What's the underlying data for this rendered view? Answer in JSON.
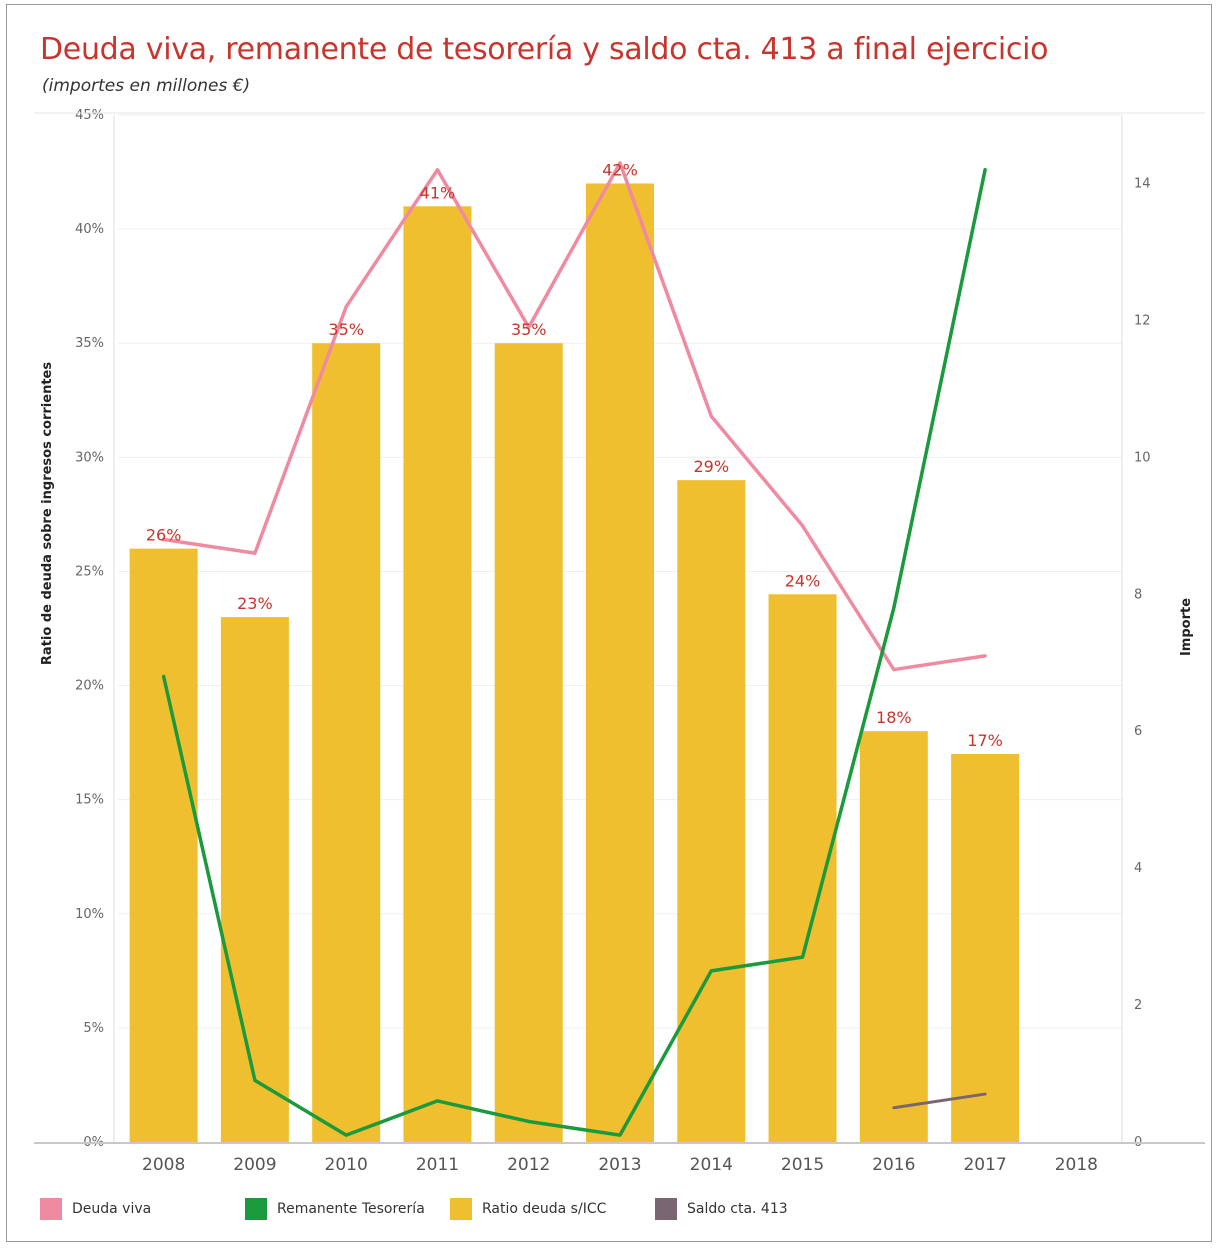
{
  "header": {
    "title": "Deuda viva, remanente de tesorería y saldo cta. 413  a final ejercicio",
    "subtitle": "(importes en millones €)"
  },
  "colors": {
    "bars": "#f0bf30",
    "deuda": "#f08aa0",
    "remanente": "#1a9a3c",
    "saldo": "#7a6670",
    "labels": "#c8352d"
  },
  "legend": [
    {
      "label": "Deuda viva",
      "color": "#f08aa0"
    },
    {
      "label": "Remanente Tesorería",
      "color": "#1a9a3c"
    },
    {
      "label": "Ratio deuda s/ICC",
      "color": "#f0bf30"
    },
    {
      "label": "Saldo cta. 413",
      "color": "#7a6670"
    }
  ],
  "chart_data": {
    "type": "bar",
    "categories": [
      "2008",
      "2009",
      "2010",
      "2011",
      "2012",
      "2013",
      "2014",
      "2015",
      "2016",
      "2017",
      "2018"
    ],
    "ylabel": "Ratio de deuda sobre ingresos corrientes",
    "y2label": "Importe",
    "ylim": [
      0,
      45
    ],
    "y2lim": [
      0,
      15
    ],
    "yticks": [
      "0%",
      "5%",
      "10%",
      "15%",
      "20%",
      "25%",
      "30%",
      "35%",
      "40%",
      "45%"
    ],
    "y2ticks": [
      "0",
      "2",
      "4",
      "6",
      "8",
      "10",
      "12",
      "14"
    ],
    "bars": {
      "name": "Ratio deuda s/ICC",
      "values": [
        26,
        23,
        35,
        41,
        35,
        42,
        29,
        24,
        18,
        17,
        null
      ],
      "labels": [
        "26%",
        "23%",
        "35%",
        "41%",
        "35%",
        "42%",
        "29%",
        "24%",
        "18%",
        "17%",
        ""
      ]
    },
    "lines": [
      {
        "name": "Deuda viva",
        "values": [
          8.8,
          8.6,
          12.2,
          14.2,
          11.9,
          14.3,
          10.6,
          9.0,
          6.9,
          7.1,
          null
        ]
      },
      {
        "name": "Remanente Tesorería",
        "values": [
          6.8,
          0.9,
          0.1,
          0.6,
          0.3,
          0.1,
          2.5,
          2.7,
          7.8,
          14.2,
          null
        ]
      },
      {
        "name": "Saldo cta. 413",
        "values": [
          null,
          null,
          null,
          null,
          null,
          null,
          null,
          null,
          0.5,
          0.7,
          null
        ]
      }
    ],
    "grid": true,
    "legend_position": "bottom"
  }
}
